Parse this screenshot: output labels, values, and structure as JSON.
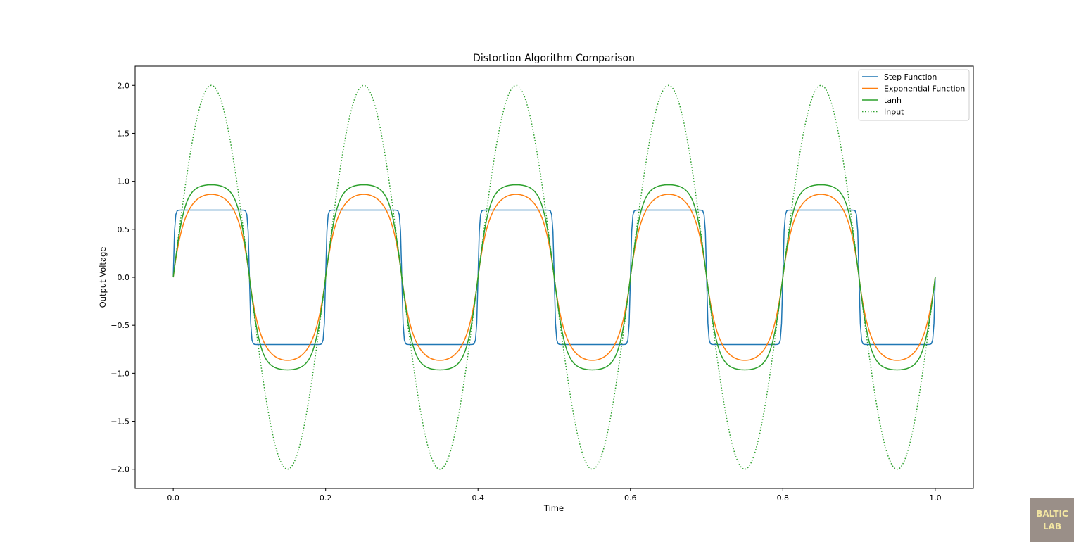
{
  "chart_data": {
    "type": "line",
    "title": "Distortion Algorithm Comparison",
    "xlabel": "Time",
    "ylabel": "Output Voltage",
    "xlim": [
      -0.05,
      1.05
    ],
    "ylim": [
      -2.2,
      2.2
    ],
    "x_ticks": [
      0.0,
      0.2,
      0.4,
      0.6,
      0.8,
      1.0
    ],
    "x_tick_labels": [
      "0.0",
      "0.2",
      "0.4",
      "0.6",
      "0.8",
      "1.0"
    ],
    "y_ticks": [
      2.0,
      1.5,
      1.0,
      0.5,
      0.0,
      -0.5,
      -1.0,
      -1.5,
      -2.0
    ],
    "y_tick_labels": [
      "2.0",
      "1.5",
      "1.0",
      "0.5",
      "0.0",
      "−0.5",
      "−1.0",
      "−1.5",
      "−2.0"
    ],
    "grid": false,
    "legend_position": "top-right",
    "signal": {
      "amplitude": 2.0,
      "frequency_hz": 5,
      "x_range": [
        0.0,
        1.0
      ],
      "samples": 600
    },
    "series": [
      {
        "name": "Step Function",
        "color": "#1f77b4",
        "style": "solid",
        "function": "step",
        "peak": 0.7
      },
      {
        "name": "Exponential Function",
        "color": "#ff7f0e",
        "style": "solid",
        "function": "exponential",
        "peak": 0.865
      },
      {
        "name": "tanh",
        "color": "#2ca02c",
        "style": "solid",
        "function": "tanh",
        "peak": 0.964
      },
      {
        "name": "Input",
        "color": "#2ca02c",
        "style": "dotted",
        "function": "input",
        "peak": 2.0
      }
    ]
  },
  "watermark": {
    "line1": "BALTIC",
    "line2": "LAB"
  }
}
